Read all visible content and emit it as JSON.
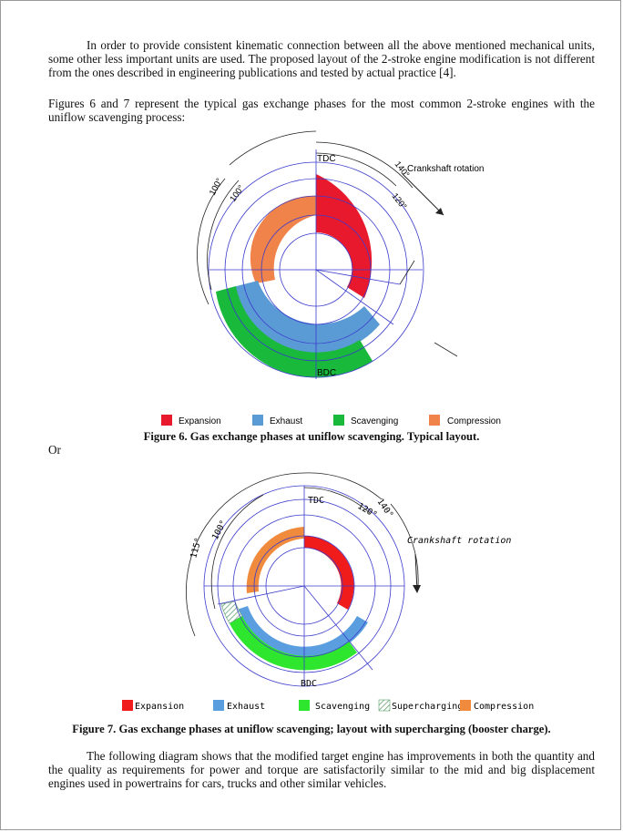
{
  "text": {
    "para1": "In order to provide consistent kinematic connection between all the above mentioned mechanical units, some other less important units are used.  The proposed layout of the 2-stroke engine modification is not different from the ones described in engineering publications and tested by actual practice [4].",
    "para2": "Figures 6 and 7 represent the typical gas exchange phases for the most common 2-stroke engines with the uniflow scavenging process:",
    "or": "Or",
    "para3": "The following diagram shows that the modified target engine has improvements in both the quantity and the quality as requirements for power and torque are satisfactorily similar to the mid and big displacement engines used in powertrains for cars, trucks and other similar vehicles."
  },
  "figure6": {
    "caption": "Figure 6.  Gas exchange phases at uniflow scavenging.  Typical layout.",
    "tdc": "TDC",
    "bdc": "BDC",
    "rotation": "Crankshaft rotation",
    "angle_outer_left": "100°",
    "angle_inner_left": "100°",
    "angle_outer_right": "140°",
    "angle_inner_right": "120°",
    "legend": [
      {
        "label": "Expansion",
        "color": "#e8192c"
      },
      {
        "label": "Exhaust",
        "color": "#5b9bd5"
      },
      {
        "label": "Scavenging",
        "color": "#19b93c"
      },
      {
        "label": "Compression",
        "color": "#f0834a"
      }
    ]
  },
  "figure7": {
    "caption": "Figure 7.  Gas exchange phases at uniflow scavenging; layout with supercharging (booster charge).",
    "tdc": "TDC",
    "bdc": "BDC",
    "rotation": "Crankshaft rotation",
    "angle_115": "115°",
    "angle_100": "100°",
    "angle_120": "120°",
    "angle_140": "140°",
    "legend": [
      {
        "label": "Expansion",
        "color": "#f01b1b"
      },
      {
        "label": "Exhaust",
        "color": "#5a9ee0"
      },
      {
        "label": "Scavenging",
        "color": "#2ee62e"
      },
      {
        "label": "Supercharging",
        "color": "#b8e8c4"
      },
      {
        "label": "Compression",
        "color": "#f08a3c"
      }
    ]
  }
}
